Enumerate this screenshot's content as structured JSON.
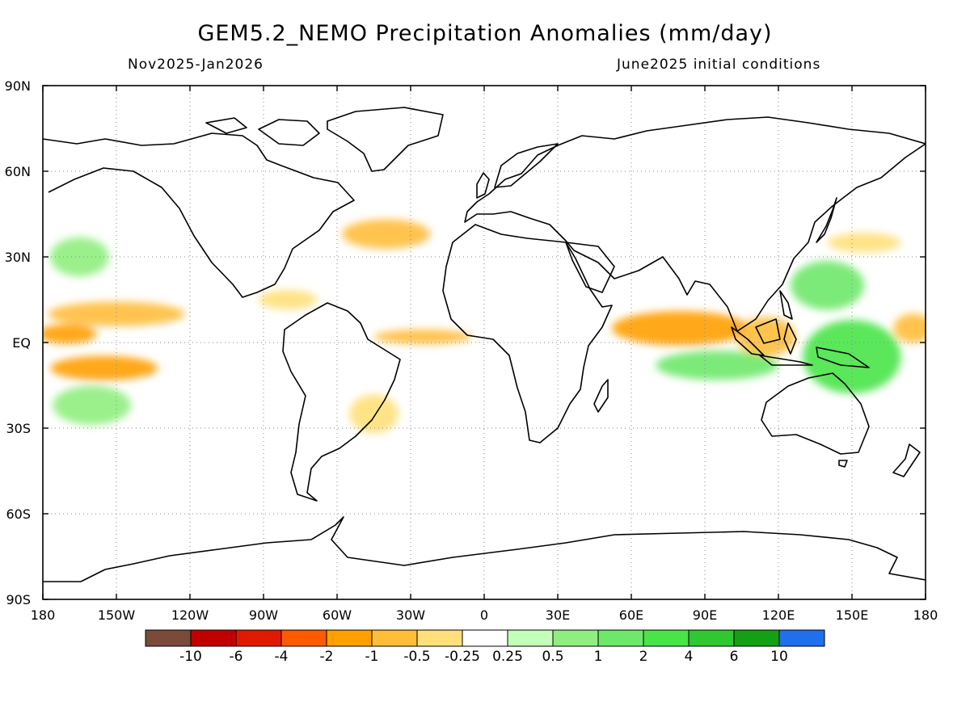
{
  "title": "GEM5.2_NEMO Precipitation Anomalies (mm/day)",
  "subtitle_left": "Nov2025-Jan2026",
  "subtitle_right": "June2025 initial conditions",
  "latitude_labels": [
    "90N",
    "60N",
    "30N",
    "EQ",
    "30S",
    "60S",
    "90S"
  ],
  "longitude_labels": [
    "180",
    "150W",
    "120W",
    "90W",
    "60W",
    "30W",
    "0",
    "30E",
    "60E",
    "90E",
    "120E",
    "150E",
    "180"
  ],
  "colorbar": {
    "colors": [
      "#7a4a3a",
      "#c00000",
      "#e01a00",
      "#ff5a00",
      "#ff9f00",
      "#ffbd3a",
      "#ffe07a",
      "#ffffff",
      "#c2ffb8",
      "#90ee80",
      "#6ee86a",
      "#48e448",
      "#30c830",
      "#14a014",
      "#2070ee"
    ],
    "tick_labels": [
      "-10",
      "-6",
      "-4",
      "-2",
      "-1",
      "-0.5",
      "-0.25",
      "0.25",
      "0.5",
      "1",
      "2",
      "4",
      "6",
      "10"
    ]
  },
  "chart_data": {
    "type": "heatmap",
    "variable": "Precipitation Anomalies (mm/day)",
    "xlim": [
      -180,
      180
    ],
    "ylim": [
      -90,
      90
    ],
    "grid": true,
    "anomaly_regions": [
      {
        "lon": -150,
        "lat": 10,
        "value": -1,
        "dlon": 28,
        "dlat": 5
      },
      {
        "lon": -170,
        "lat": 3,
        "value": -2,
        "dlon": 12,
        "dlat": 4
      },
      {
        "lon": -155,
        "lat": -9,
        "value": -2,
        "dlon": 22,
        "dlat": 5
      },
      {
        "lon": -160,
        "lat": -22,
        "value": 0.5,
        "dlon": 16,
        "dlat": 8
      },
      {
        "lon": -165,
        "lat": 30,
        "value": 0.5,
        "dlon": 12,
        "dlat": 8
      },
      {
        "lon": 80,
        "lat": 5,
        "value": -2,
        "dlon": 28,
        "dlat": 7
      },
      {
        "lon": 115,
        "lat": 2,
        "value": -1,
        "dlon": 12,
        "dlat": 8
      },
      {
        "lon": 95,
        "lat": -8,
        "value": 1,
        "dlon": 25,
        "dlat": 6
      },
      {
        "lon": 150,
        "lat": -5,
        "value": 2,
        "dlon": 20,
        "dlat": 15
      },
      {
        "lon": 140,
        "lat": 20,
        "value": 1,
        "dlon": 15,
        "dlat": 10
      },
      {
        "lon": 175,
        "lat": 5,
        "value": -1,
        "dlon": 8,
        "dlat": 6
      },
      {
        "lon": -40,
        "lat": 38,
        "value": -1,
        "dlon": 18,
        "dlat": 6
      },
      {
        "lon": -25,
        "lat": 2,
        "value": -1,
        "dlon": 20,
        "dlat": 3
      },
      {
        "lon": -45,
        "lat": -25,
        "value": -0.5,
        "dlon": 10,
        "dlat": 8
      },
      {
        "lon": 155,
        "lat": 35,
        "value": -0.5,
        "dlon": 15,
        "dlat": 4
      },
      {
        "lon": -80,
        "lat": 15,
        "value": -0.5,
        "dlon": 12,
        "dlat": 4
      }
    ]
  }
}
